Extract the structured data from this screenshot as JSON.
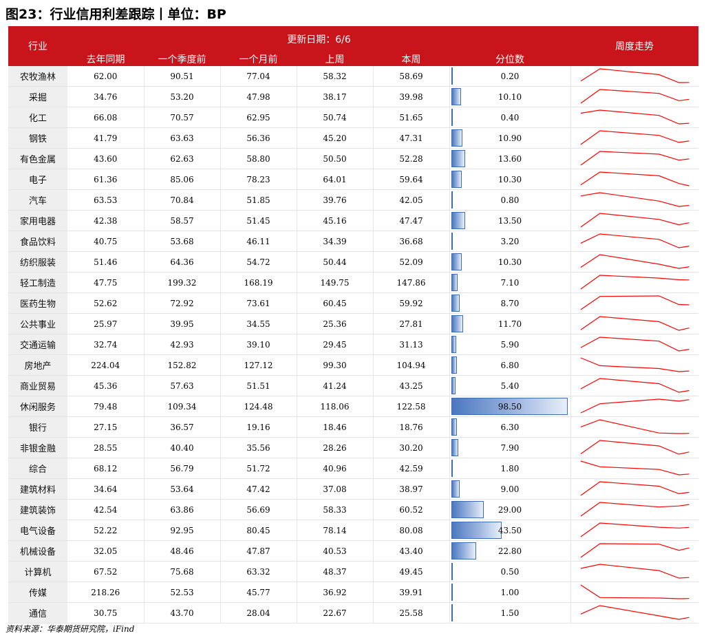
{
  "title": "图23：行业信用利差跟踪丨单位：BP",
  "source": "资料来源：华泰期货研究院，iFind",
  "header": {
    "industry": "行业",
    "update": "更新日期：6/6",
    "trend": "周度走势",
    "columns": [
      "去年同期",
      "一个季度前",
      "一个月前",
      "上周",
      "本周",
      "分位数"
    ]
  },
  "colors": {
    "header_bg": "#c8141a",
    "sparkline": "#ff0000",
    "bar": "#4a78c0"
  },
  "rows": [
    {
      "name": "农牧渔林",
      "values": [
        "62.00",
        "90.51",
        "77.04",
        "58.32",
        "58.69"
      ],
      "pct": "0.20"
    },
    {
      "name": "采掘",
      "values": [
        "34.76",
        "53.20",
        "47.98",
        "38.17",
        "39.98"
      ],
      "pct": "10.10"
    },
    {
      "name": "化工",
      "values": [
        "66.08",
        "70.57",
        "62.95",
        "50.74",
        "51.65"
      ],
      "pct": "0.40"
    },
    {
      "name": "钢铁",
      "values": [
        "41.79",
        "63.63",
        "56.36",
        "45.20",
        "47.31"
      ],
      "pct": "10.90"
    },
    {
      "name": "有色金属",
      "values": [
        "43.60",
        "62.63",
        "58.80",
        "50.50",
        "52.28"
      ],
      "pct": "13.60"
    },
    {
      "name": "电子",
      "values": [
        "61.36",
        "85.06",
        "78.23",
        "64.01",
        "59.64"
      ],
      "pct": "10.30"
    },
    {
      "name": "汽车",
      "values": [
        "63.53",
        "70.84",
        "51.85",
        "39.76",
        "42.05"
      ],
      "pct": "0.80"
    },
    {
      "name": "家用电器",
      "values": [
        "42.38",
        "58.57",
        "51.45",
        "45.16",
        "47.47"
      ],
      "pct": "13.50"
    },
    {
      "name": "食品饮料",
      "values": [
        "40.75",
        "53.68",
        "46.11",
        "34.39",
        "36.68"
      ],
      "pct": "3.20"
    },
    {
      "name": "纺织服装",
      "values": [
        "51.46",
        "64.36",
        "54.72",
        "50.44",
        "52.09"
      ],
      "pct": "10.30"
    },
    {
      "name": "轻工制造",
      "values": [
        "47.75",
        "199.32",
        "168.19",
        "149.75",
        "147.86"
      ],
      "pct": "7.10"
    },
    {
      "name": "医药生物",
      "values": [
        "52.62",
        "72.92",
        "73.61",
        "60.45",
        "59.92"
      ],
      "pct": "8.70"
    },
    {
      "name": "公共事业",
      "values": [
        "25.97",
        "39.95",
        "34.55",
        "25.36",
        "27.81"
      ],
      "pct": "11.70"
    },
    {
      "name": "交通运输",
      "values": [
        "32.74",
        "42.93",
        "39.10",
        "29.45",
        "31.13"
      ],
      "pct": "5.90"
    },
    {
      "name": "房地产",
      "values": [
        "224.04",
        "152.82",
        "127.12",
        "99.30",
        "104.94"
      ],
      "pct": "6.80"
    },
    {
      "name": "商业贸易",
      "values": [
        "45.36",
        "57.63",
        "51.51",
        "41.24",
        "43.25"
      ],
      "pct": "5.40"
    },
    {
      "name": "休闲服务",
      "values": [
        "79.48",
        "109.34",
        "124.48",
        "118.06",
        "122.58"
      ],
      "pct": "98.50"
    },
    {
      "name": "银行",
      "values": [
        "27.15",
        "36.57",
        "19.16",
        "18.46",
        "18.76"
      ],
      "pct": "6.30"
    },
    {
      "name": "非银金融",
      "values": [
        "28.55",
        "40.40",
        "35.56",
        "28.26",
        "30.20"
      ],
      "pct": "7.90"
    },
    {
      "name": "综合",
      "values": [
        "68.12",
        "56.79",
        "51.72",
        "40.96",
        "42.59"
      ],
      "pct": "1.80"
    },
    {
      "name": "建筑材料",
      "values": [
        "34.64",
        "53.64",
        "47.42",
        "37.08",
        "38.97"
      ],
      "pct": "9.00"
    },
    {
      "name": "建筑装饰",
      "values": [
        "42.54",
        "63.86",
        "56.69",
        "58.33",
        "60.52"
      ],
      "pct": "29.00"
    },
    {
      "name": "电气设备",
      "values": [
        "52.22",
        "92.95",
        "80.45",
        "78.14",
        "80.08"
      ],
      "pct": "43.50"
    },
    {
      "name": "机械设备",
      "values": [
        "32.05",
        "48.46",
        "47.87",
        "40.53",
        "43.40"
      ],
      "pct": "22.80"
    },
    {
      "name": "计算机",
      "values": [
        "67.52",
        "75.68",
        "63.32",
        "48.37",
        "49.45"
      ],
      "pct": "0.50"
    },
    {
      "name": "传媒",
      "values": [
        "218.26",
        "52.53",
        "45.77",
        "36.92",
        "39.91"
      ],
      "pct": "1.00"
    },
    {
      "name": "通信",
      "values": [
        "30.75",
        "43.70",
        "28.04",
        "22.67",
        "25.58"
      ],
      "pct": "1.50"
    }
  ]
}
